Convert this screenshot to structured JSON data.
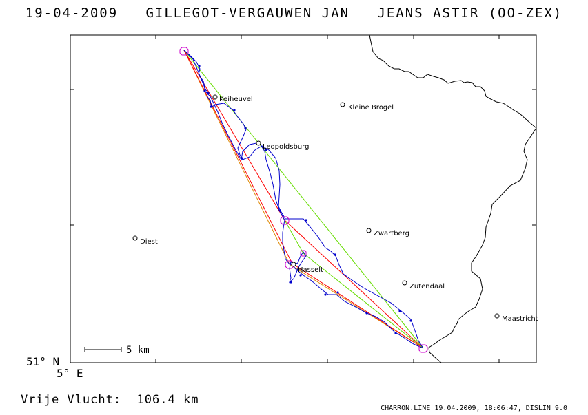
{
  "header": {
    "date": "19-04-2009",
    "pilot": "GILLEGOT-VERGAUWEN JAN",
    "glider": "JEANS ASTIR (OO-ZEX)"
  },
  "axes": {
    "lat_label": "51° N",
    "lon_label": "5° E"
  },
  "scale_bar": {
    "label": "5 km"
  },
  "distance": {
    "label": "Vrije Vlucht:",
    "value": "106.4 km"
  },
  "footer": "CHARRON.LINE 19.04.2009, 18:06:47, DISLIN 9.0",
  "cities": [
    {
      "name": "Keiheuvel"
    },
    {
      "name": "Kleine Brogel"
    },
    {
      "name": "Leopoldsburg"
    },
    {
      "name": "Diest"
    },
    {
      "name": "Zwartberg"
    },
    {
      "name": "Hasselt"
    },
    {
      "name": "Zutendaal"
    },
    {
      "name": "Maastricht"
    }
  ],
  "colors": {
    "track": "#0000cc",
    "turnpoint": "#cc00cc",
    "task_red": "#ff0000",
    "task_green": "#66dd00",
    "task_orange": "#dd8800",
    "border": "#000000"
  }
}
